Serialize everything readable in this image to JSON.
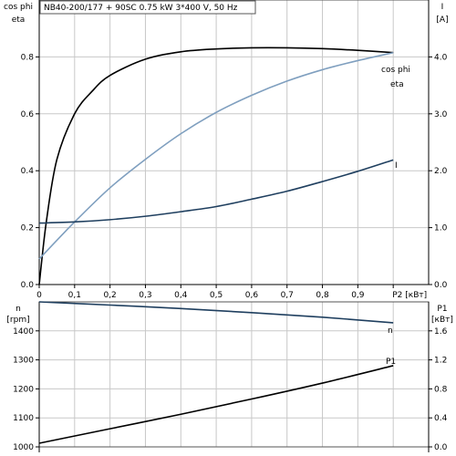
{
  "title": "NB40-200/177 + 90SC   0.75 kW   3*400 V, 50 Hz",
  "colors": {
    "eta": "#000000",
    "cos_phi": "#7f9fbf",
    "I": "#1f3f5f",
    "n": "#1f3f5f",
    "P1": "#000000",
    "cos_phi_label": "#6f8faf",
    "I_label": "#7f9fbf",
    "n_label": "#4f6f9f"
  },
  "chart_data": [
    {
      "type": "line",
      "x_label": "P2 [кВт]",
      "x_ticks": [
        "0",
        "0,1",
        "0,2",
        "0,3",
        "0,4",
        "0,5",
        "0,6",
        "0,7",
        "0,8",
        "0,9"
      ],
      "xlim": [
        0,
        1.1
      ],
      "left_axis": {
        "label_top": "cos phi",
        "label_bottom": "eta",
        "ylim": [
          0,
          1.0
        ],
        "ticks": [
          "0.0",
          "0.2",
          "0.4",
          "0.6",
          "0.8"
        ]
      },
      "right_axis": {
        "label_top": "I",
        "label_bottom": "[A]",
        "ylim": [
          0,
          5.0
        ],
        "ticks": [
          "0.0",
          "1.0",
          "2.0",
          "3.0",
          "4.0"
        ]
      },
      "series": [
        {
          "name": "eta",
          "axis": "left",
          "x": [
            0.0,
            0.02,
            0.05,
            0.1,
            0.15,
            0.2,
            0.3,
            0.4,
            0.5,
            0.6,
            0.7,
            0.8,
            0.9,
            1.0
          ],
          "y": [
            0.0,
            0.22,
            0.44,
            0.6,
            0.68,
            0.735,
            0.792,
            0.818,
            0.828,
            0.832,
            0.832,
            0.829,
            0.823,
            0.815
          ]
        },
        {
          "name": "cos phi",
          "axis": "left",
          "x": [
            0.0,
            0.1,
            0.2,
            0.3,
            0.4,
            0.5,
            0.6,
            0.7,
            0.8,
            0.9,
            1.0
          ],
          "y": [
            0.09,
            0.22,
            0.34,
            0.44,
            0.53,
            0.605,
            0.665,
            0.715,
            0.755,
            0.787,
            0.815
          ]
        },
        {
          "name": "I",
          "axis": "right",
          "x": [
            0.0,
            0.1,
            0.2,
            0.3,
            0.4,
            0.5,
            0.6,
            0.7,
            0.8,
            0.9,
            1.0
          ],
          "y": [
            1.08,
            1.1,
            1.14,
            1.2,
            1.28,
            1.37,
            1.5,
            1.64,
            1.81,
            1.99,
            2.19
          ]
        }
      ]
    },
    {
      "type": "line",
      "left_axis": {
        "label_top": "n",
        "label_bottom": "[rpm]",
        "ylim": [
          1000,
          1500
        ],
        "ticks": [
          "1000",
          "1100",
          "1200",
          "1300",
          "1400"
        ]
      },
      "right_axis": {
        "label_top": "P1",
        "label_bottom": "[кВт]",
        "ylim": [
          0,
          2.0
        ],
        "ticks": [
          "0.0",
          "0.4",
          "0.8",
          "1.2",
          "1.6"
        ]
      },
      "xlim": [
        0,
        1.1
      ],
      "series": [
        {
          "name": "n",
          "axis": "left",
          "x": [
            0.0,
            0.2,
            0.4,
            0.6,
            0.8,
            1.0
          ],
          "y": [
            1500,
            1489,
            1477,
            1463,
            1447,
            1428
          ]
        },
        {
          "name": "P1",
          "axis": "right",
          "x": [
            0.0,
            0.2,
            0.4,
            0.6,
            0.8,
            1.0
          ],
          "y": [
            0.05,
            0.25,
            0.45,
            0.66,
            0.88,
            1.12
          ]
        }
      ]
    }
  ]
}
